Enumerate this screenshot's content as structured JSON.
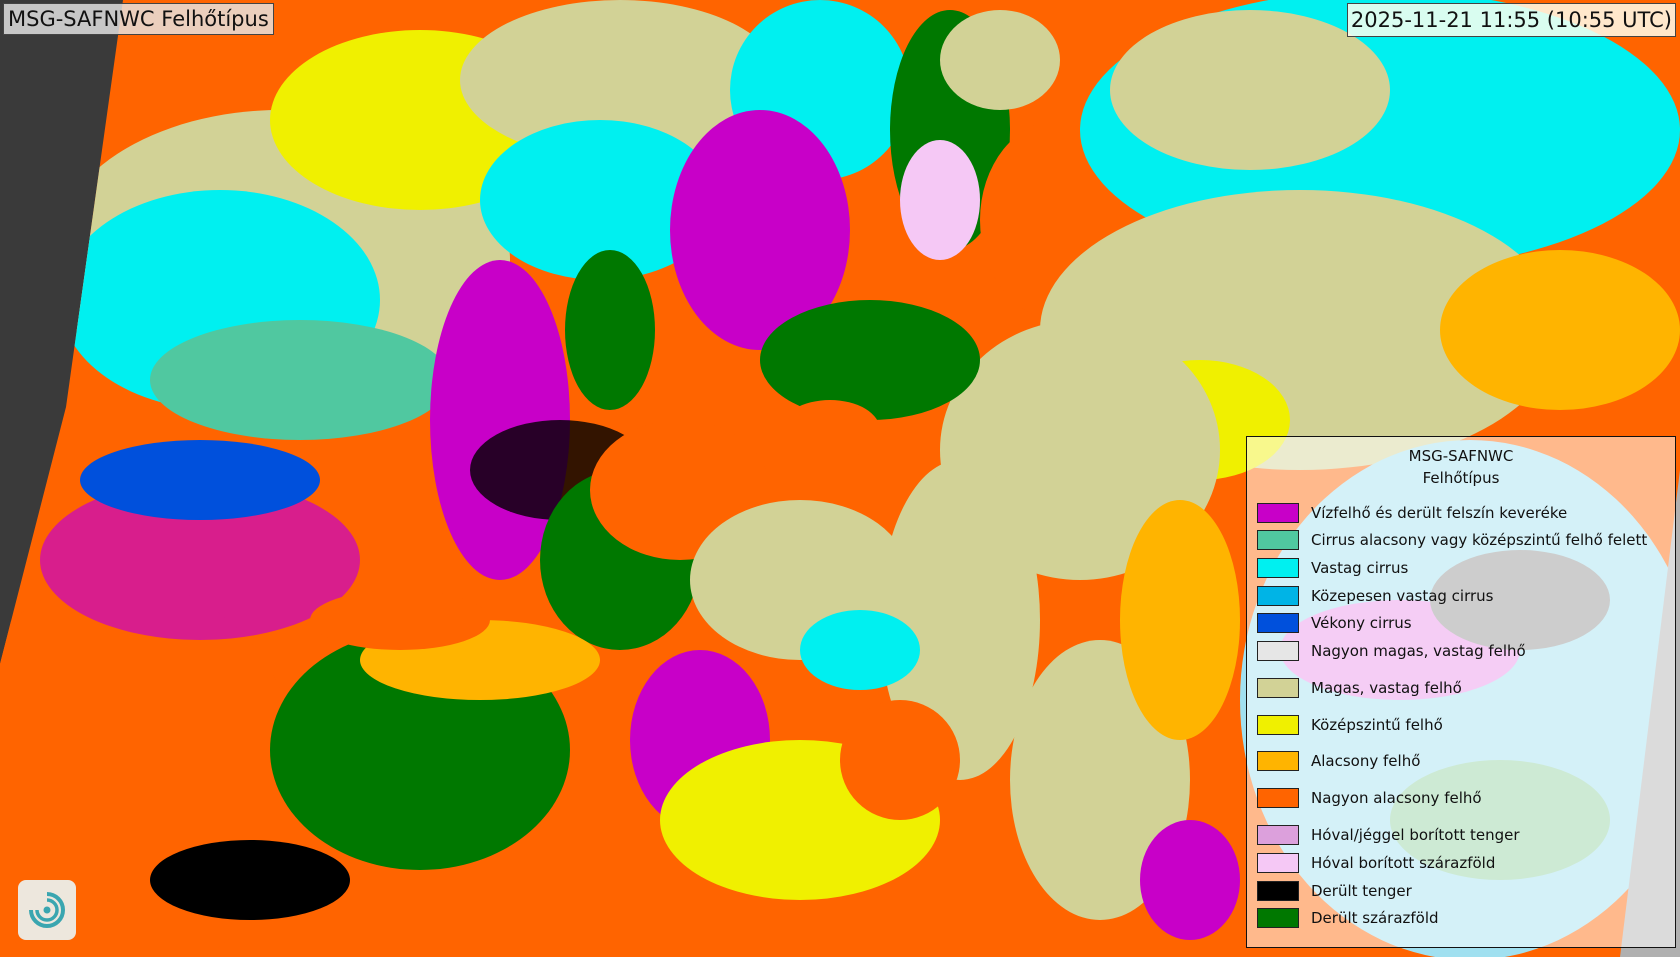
{
  "header": {
    "product_title": "MSG-SAFNWC Felhőtípus",
    "timestamp": "2025-11-21 11:55 (10:55 UTC)"
  },
  "legend": {
    "title_line1": "MSG-SAFNWC",
    "title_line2": "Felhőtípus",
    "items": [
      {
        "label": "Vízfelhő és derült felszín keveréke",
        "color": "#c800c8"
      },
      {
        "label": "Cirrus alacsony vagy középszintű felhő felett",
        "color": "#50c8a0"
      },
      {
        "label": "Vastag cirrus",
        "color": "#00f0f0"
      },
      {
        "label": "Közepesen vastag cirrus",
        "color": "#00b4e6"
      },
      {
        "label": "Vékony cirrus",
        "color": "#0050dc"
      },
      {
        "label": "Nagyon magas, vastag felhő",
        "color": "#e6e6e6"
      },
      {
        "label": "Magas, vastag felhő",
        "color": "#d2d296"
      },
      {
        "label": "Középszintű felhő",
        "color": "#f0f000"
      },
      {
        "label": "Alacsony felhő",
        "color": "#ffb400"
      },
      {
        "label": "Nagyon alacsony felhő",
        "color": "#ff6400"
      },
      {
        "label": "Hóval/jéggel borított tenger",
        "color": "#dca0dc"
      },
      {
        "label": "Hóval borított szárazföld",
        "color": "#f5c8f5"
      },
      {
        "label": "Derült tenger",
        "color": "#000000"
      },
      {
        "label": "Derült szárazföld",
        "color": "#007800"
      }
    ]
  },
  "logo": {
    "icon": "swirl-logo-icon"
  }
}
